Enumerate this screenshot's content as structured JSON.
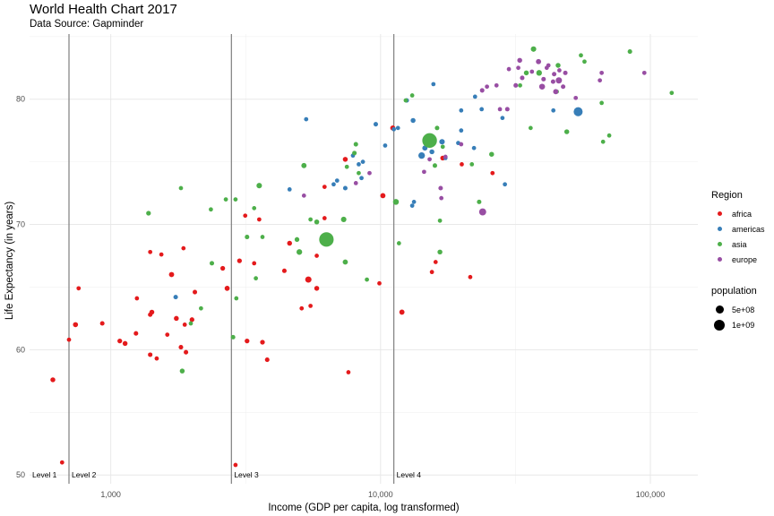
{
  "chart_data": {
    "type": "scatter",
    "title": "World Health Chart 2017",
    "subtitle": "Data Source: Gapminder",
    "xlabel": "Income (GDP per capita, log transformed)",
    "ylabel": "Life Expectancy (in years)",
    "x_scale": "log10",
    "xlim": [
      500,
      150000
    ],
    "ylim": [
      49.3,
      85.2
    ],
    "x_ticks": [
      1000,
      10000,
      100000
    ],
    "x_tick_labels": [
      "1,000",
      "10,000",
      "100,000"
    ],
    "y_ticks": [
      50,
      60,
      70,
      80
    ],
    "y_tick_labels": [
      "50",
      "60",
      "70",
      "80"
    ],
    "grid": true,
    "level_lines": [
      {
        "label": "Level 1",
        "x": 500
      },
      {
        "label": "Level 2",
        "x": 700
      },
      {
        "label": "Level 3",
        "x": 2800
      },
      {
        "label": "Level 4",
        "x": 11200
      }
    ],
    "legend_position": "right",
    "legend": {
      "region_title": "Region",
      "regions": [
        {
          "name": "africa",
          "color": "#e41a1c"
        },
        {
          "name": "americas",
          "color": "#377eb8"
        },
        {
          "name": "asia",
          "color": "#4daf4a"
        },
        {
          "name": "europe",
          "color": "#984ea3"
        }
      ],
      "size_title": "population",
      "sizes": [
        {
          "label": "5e+08",
          "value": 500000000
        },
        {
          "label": "1e+09",
          "value": 1000000000
        }
      ]
    },
    "series": [
      {
        "name": "africa",
        "points": [
          [
            610,
            57.6,
            20000000
          ],
          [
            660,
            51,
            5000000
          ],
          [
            700,
            60.8,
            5000000
          ],
          [
            760,
            64.9,
            5000000
          ],
          [
            740,
            62,
            25000000
          ],
          [
            930,
            62.1,
            10000000
          ],
          [
            1080,
            60.7,
            15000000
          ],
          [
            1130,
            60.5,
            20000000
          ],
          [
            1240,
            61.3,
            10000000
          ],
          [
            1250,
            64.1,
            5000000
          ],
          [
            1420,
            63,
            20000000
          ],
          [
            1400,
            62.8,
            10000000
          ],
          [
            1400,
            67.8,
            5000000
          ],
          [
            1400,
            59.6,
            10000000
          ],
          [
            1480,
            59.3,
            5000000
          ],
          [
            1540,
            67.6,
            5000000
          ],
          [
            1620,
            61.2,
            5000000
          ],
          [
            1680,
            66,
            30000000
          ],
          [
            1750,
            62.5,
            20000000
          ],
          [
            1820,
            60.2,
            10000000
          ],
          [
            1880,
            62,
            5000000
          ],
          [
            1860,
            68.1,
            5000000
          ],
          [
            1900,
            59.8,
            10000000
          ],
          [
            2000,
            62.4,
            15000000
          ],
          [
            2050,
            64.6,
            10000000
          ],
          [
            2600,
            66.5,
            15000000
          ],
          [
            2700,
            64.9,
            25000000
          ],
          [
            2900,
            50.8,
            5000000
          ],
          [
            3000,
            67.1,
            15000000
          ],
          [
            3150,
            70.7,
            5000000
          ],
          [
            3200,
            60.7,
            15000000
          ],
          [
            3400,
            66.9,
            5000000
          ],
          [
            3550,
            70.4,
            5000000
          ],
          [
            3650,
            60.6,
            15000000
          ],
          [
            3800,
            59.2,
            10000000
          ],
          [
            4400,
            66.3,
            10000000
          ],
          [
            4600,
            68.5,
            20000000
          ],
          [
            5100,
            63.3,
            5000000
          ],
          [
            5400,
            65.6,
            80000000
          ],
          [
            5500,
            63.5,
            5000000
          ],
          [
            5800,
            64.9,
            20000000
          ],
          [
            5800,
            67.5,
            5000000
          ],
          [
            6200,
            73,
            5000000
          ],
          [
            6200,
            70.5,
            5000000
          ],
          [
            7400,
            75.2,
            20000000
          ],
          [
            7600,
            58.2,
            5000000
          ],
          [
            9900,
            65.3,
            5000000
          ],
          [
            10200,
            72.3,
            30000000
          ],
          [
            11100,
            77.7,
            25000000
          ],
          [
            12000,
            63,
            30000000
          ],
          [
            15500,
            66.2,
            5000000
          ],
          [
            16000,
            67,
            5000000
          ],
          [
            17000,
            75.3,
            20000000
          ],
          [
            20000,
            74.8,
            5000000
          ],
          [
            21500,
            65.8,
            5000000
          ],
          [
            26000,
            74.1,
            5000000
          ]
        ]
      },
      {
        "name": "americas",
        "points": [
          [
            1740,
            64.2,
            10000000
          ],
          [
            5300,
            78.4,
            5000000
          ],
          [
            4600,
            72.8,
            5000000
          ],
          [
            6700,
            73.2,
            5000000
          ],
          [
            6900,
            73.5,
            5000000
          ],
          [
            7400,
            72.9,
            10000000
          ],
          [
            7900,
            75.5,
            5000000
          ],
          [
            8300,
            74.8,
            5000000
          ],
          [
            8600,
            75,
            5000000
          ],
          [
            8500,
            73.7,
            5000000
          ],
          [
            9600,
            78,
            10000000
          ],
          [
            10400,
            76.3,
            5000000
          ],
          [
            11200,
            77.6,
            5000000
          ],
          [
            11600,
            77.7,
            5000000
          ],
          [
            12500,
            79.9,
            10000000
          ],
          [
            13200,
            78.3,
            20000000
          ],
          [
            13100,
            71.5,
            5000000
          ],
          [
            13300,
            71.8,
            5000000
          ],
          [
            14200,
            75.5,
            100000000
          ],
          [
            14600,
            76.1,
            30000000
          ],
          [
            15500,
            75.8,
            20000000
          ],
          [
            15700,
            81.2,
            5000000
          ],
          [
            16900,
            76.6,
            40000000
          ],
          [
            17400,
            75.3,
            5000000
          ],
          [
            19900,
            77.5,
            5000000
          ],
          [
            19400,
            76.5,
            5000000
          ],
          [
            19900,
            79.1,
            5000000
          ],
          [
            22400,
            80.2,
            5000000
          ],
          [
            22200,
            76.1,
            5000000
          ],
          [
            23700,
            79.2,
            5000000
          ],
          [
            28300,
            78.5,
            5000000
          ],
          [
            28900,
            73.2,
            5000000
          ],
          [
            43700,
            79.1,
            5000000
          ],
          [
            54000,
            79,
            330000000
          ]
        ]
      },
      {
        "name": "asia",
        "points": [
          [
            1380,
            70.9,
            15000000
          ],
          [
            1820,
            72.9,
            5000000
          ],
          [
            1840,
            58.3,
            20000000
          ],
          [
            1980,
            62.1,
            5000000
          ],
          [
            2160,
            63.3,
            5000000
          ],
          [
            2350,
            71.2,
            5000000
          ],
          [
            2370,
            66.9,
            10000000
          ],
          [
            2670,
            72,
            5000000
          ],
          [
            2840,
            61,
            10000000
          ],
          [
            2920,
            64.1,
            5000000
          ],
          [
            2900,
            72,
            5000000
          ],
          [
            3200,
            69,
            10000000
          ],
          [
            3400,
            71.3,
            5000000
          ],
          [
            3450,
            65.7,
            5000000
          ],
          [
            3550,
            73.1,
            40000000
          ],
          [
            3650,
            69,
            5000000
          ],
          [
            4900,
            68.8,
            15000000
          ],
          [
            5000,
            67.8,
            50000000
          ],
          [
            5200,
            74.7,
            30000000
          ],
          [
            5500,
            70.4,
            5000000
          ],
          [
            5800,
            70.2,
            20000000
          ],
          [
            6300,
            68.8,
            1340000000
          ],
          [
            7300,
            70.4,
            40000000
          ],
          [
            7400,
            67,
            30000000
          ],
          [
            7500,
            74.6,
            5000000
          ],
          [
            8000,
            75.7,
            10000000
          ],
          [
            8100,
            76.4,
            10000000
          ],
          [
            8300,
            74.1,
            5000000
          ],
          [
            8900,
            65.6,
            5000000
          ],
          [
            11400,
            71.8,
            60000000
          ],
          [
            11700,
            68.5,
            5000000
          ],
          [
            12400,
            79.9,
            5000000
          ],
          [
            13100,
            80.3,
            5000000
          ],
          [
            15200,
            76.7,
            1390000000
          ],
          [
            15900,
            74.7,
            10000000
          ],
          [
            16200,
            77.7,
            10000000
          ],
          [
            16600,
            67.8,
            20000000
          ],
          [
            16600,
            70.3,
            5000000
          ],
          [
            17000,
            76.2,
            5000000
          ],
          [
            21800,
            74.8,
            5000000
          ],
          [
            23200,
            71.8,
            10000000
          ],
          [
            25800,
            75.6,
            20000000
          ],
          [
            32900,
            81.1,
            5000000
          ],
          [
            34700,
            82.1,
            20000000
          ],
          [
            36000,
            77.7,
            5000000
          ],
          [
            36900,
            84,
            40000000
          ],
          [
            38700,
            82.1,
            50000000
          ],
          [
            45000,
            80.6,
            5000000
          ],
          [
            45500,
            82.7,
            20000000
          ],
          [
            49000,
            77.4,
            20000000
          ],
          [
            55300,
            83.5,
            5000000
          ],
          [
            57000,
            83,
            5000000
          ],
          [
            66000,
            79.7,
            5000000
          ],
          [
            66800,
            76.6,
            5000000
          ],
          [
            70400,
            77.1,
            5000000
          ],
          [
            84000,
            83.8,
            10000000
          ],
          [
            120000,
            80.5,
            5000000
          ]
        ]
      },
      {
        "name": "europe",
        "points": [
          [
            5200,
            72.3,
            5000000
          ],
          [
            8100,
            73.3,
            5000000
          ],
          [
            9100,
            74.1,
            5000000
          ],
          [
            14500,
            74.2,
            5000000
          ],
          [
            15200,
            75.2,
            5000000
          ],
          [
            16700,
            72.9,
            10000000
          ],
          [
            16800,
            72.1,
            5000000
          ],
          [
            17400,
            75.4,
            5000000
          ],
          [
            19900,
            76.4,
            5000000
          ],
          [
            23800,
            80.7,
            10000000
          ],
          [
            23900,
            71,
            140000000
          ],
          [
            24800,
            81,
            5000000
          ],
          [
            26900,
            81.1,
            5000000
          ],
          [
            27700,
            79.2,
            5000000
          ],
          [
            29500,
            79.2,
            10000000
          ],
          [
            29900,
            82.4,
            5000000
          ],
          [
            31700,
            81.1,
            10000000
          ],
          [
            32400,
            82.5,
            5000000
          ],
          [
            32800,
            83.1,
            20000000
          ],
          [
            33500,
            81.7,
            10000000
          ],
          [
            36400,
            82.2,
            5000000
          ],
          [
            38500,
            83,
            30000000
          ],
          [
            39700,
            81,
            60000000
          ],
          [
            40200,
            81.6,
            10000000
          ],
          [
            41300,
            82.5,
            5000000
          ],
          [
            41900,
            82.7,
            5000000
          ],
          [
            43600,
            81.4,
            10000000
          ],
          [
            44000,
            82,
            10000000
          ],
          [
            44600,
            80.6,
            30000000
          ],
          [
            45800,
            81.5,
            80000000
          ],
          [
            46000,
            82.3,
            5000000
          ],
          [
            47500,
            81,
            10000000
          ],
          [
            48400,
            82.1,
            10000000
          ],
          [
            52900,
            80.1,
            5000000
          ],
          [
            65000,
            81.5,
            5000000
          ],
          [
            66000,
            82.1,
            5000000
          ],
          [
            95000,
            82.1,
            5000000
          ]
        ]
      }
    ]
  }
}
